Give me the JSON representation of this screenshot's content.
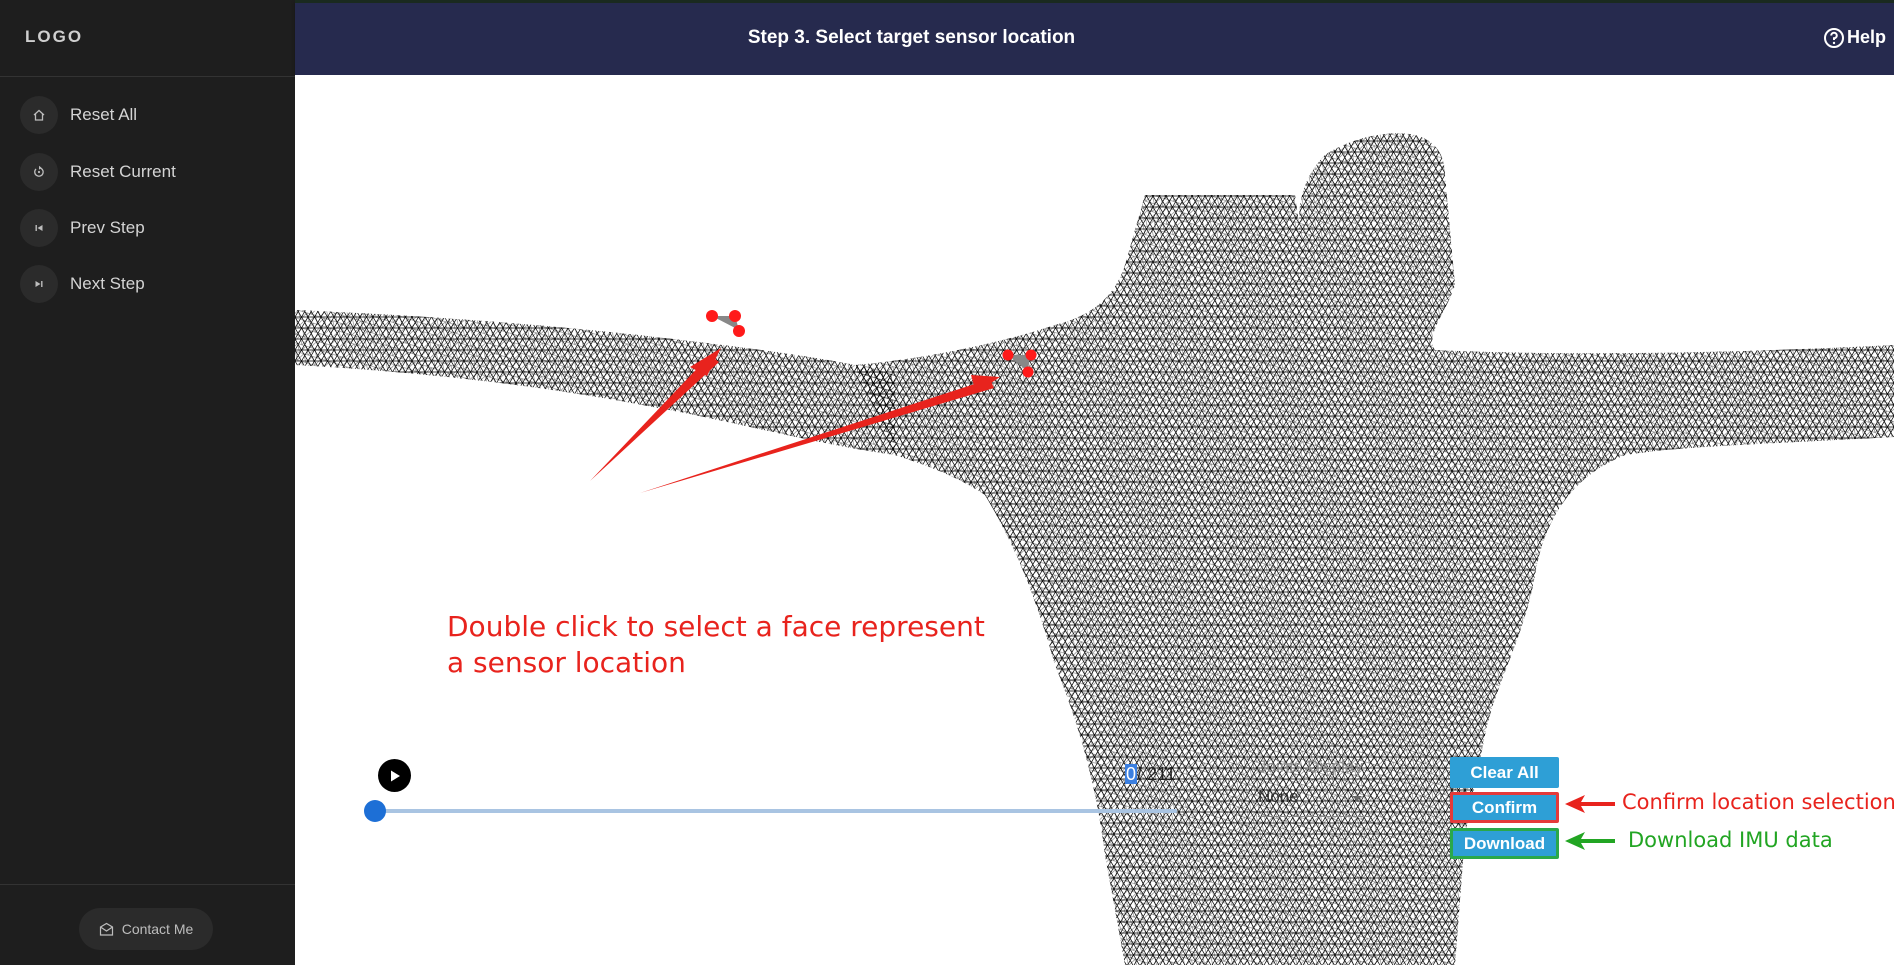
{
  "sidebar": {
    "logo": "LOGO",
    "items": [
      {
        "label": "Reset All",
        "icon": "home-icon"
      },
      {
        "label": "Reset Current",
        "icon": "reset-icon"
      },
      {
        "label": "Prev Step",
        "icon": "skip-previous-icon"
      },
      {
        "label": "Next Step",
        "icon": "skip-next-icon"
      }
    ],
    "contact_label": "Contact Me",
    "contact_icon": "mail-icon"
  },
  "header": {
    "title": "Step 3. Select target sensor location",
    "help_label": "Help",
    "help_icon": "help-circle-icon",
    "background": "#262a4e"
  },
  "annotations": {
    "instruction_line1": "Double click to select a face represent",
    "instruction_line2": "a sensor location",
    "confirm_note": "Confirm location selection",
    "download_note": "Download IMU data",
    "red": "#e8231d",
    "green": "#22a523"
  },
  "player": {
    "current_frame": "0",
    "total_frames": "/ 211",
    "progress": 0,
    "play_icon": "play-icon"
  },
  "joints_display": {
    "label": "Joints Display",
    "value": "None"
  },
  "buttons": {
    "clear_all": "Clear All",
    "confirm": "Confirm",
    "download": "Download",
    "color": "#2e9fd6"
  }
}
